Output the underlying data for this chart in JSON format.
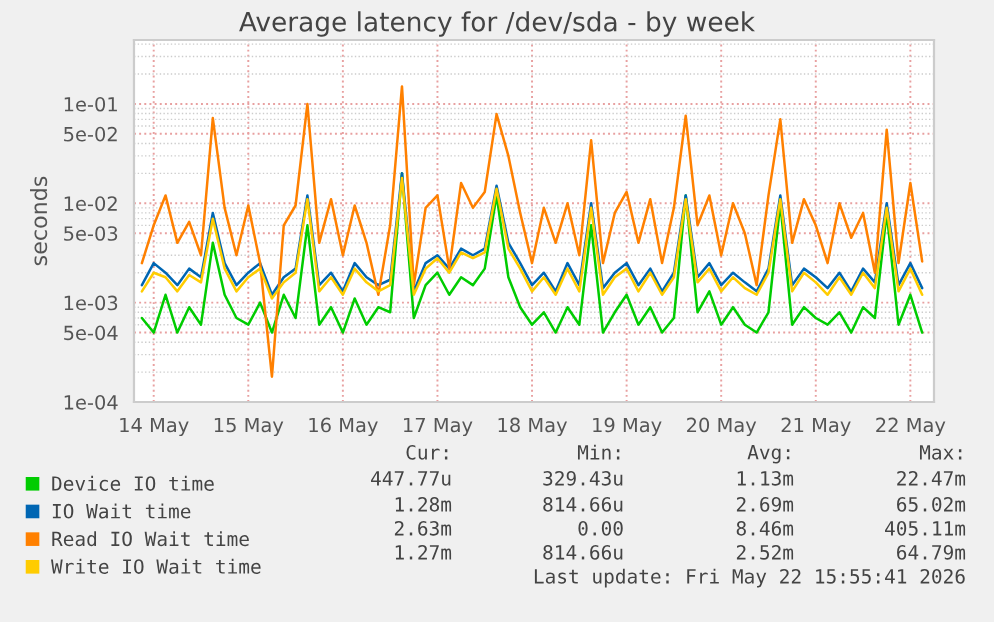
{
  "chart_data": {
    "type": "line",
    "title": "Average latency for /dev/sda - by week",
    "ylabel": "seconds",
    "log": "y",
    "grid": true,
    "legend": "bottom left",
    "line_style": "solid",
    "marker": "none",
    "x": [
      "2026-05-13T21:00",
      "2026-05-14T00:00",
      "2026-05-14T03:00",
      "2026-05-14T06:00",
      "2026-05-14T09:00",
      "2026-05-14T12:00",
      "2026-05-14T15:00",
      "2026-05-14T18:00",
      "2026-05-14T21:00",
      "2026-05-15T00:00",
      "2026-05-15T03:00",
      "2026-05-15T06:00",
      "2026-05-15T09:00",
      "2026-05-15T12:00",
      "2026-05-15T15:00",
      "2026-05-15T18:00",
      "2026-05-15T21:00",
      "2026-05-16T00:00",
      "2026-05-16T03:00",
      "2026-05-16T06:00",
      "2026-05-16T09:00",
      "2026-05-16T12:00",
      "2026-05-16T15:00",
      "2026-05-16T18:00",
      "2026-05-16T21:00",
      "2026-05-17T00:00",
      "2026-05-17T03:00",
      "2026-05-17T06:00",
      "2026-05-17T09:00",
      "2026-05-17T12:00",
      "2026-05-17T15:00",
      "2026-05-17T18:00",
      "2026-05-17T21:00",
      "2026-05-18T00:00",
      "2026-05-18T03:00",
      "2026-05-18T06:00",
      "2026-05-18T09:00",
      "2026-05-18T12:00",
      "2026-05-18T15:00",
      "2026-05-18T18:00",
      "2026-05-18T21:00",
      "2026-05-19T00:00",
      "2026-05-19T03:00",
      "2026-05-19T06:00",
      "2026-05-19T09:00",
      "2026-05-19T12:00",
      "2026-05-19T15:00",
      "2026-05-19T18:00",
      "2026-05-19T21:00",
      "2026-05-20T00:00",
      "2026-05-20T03:00",
      "2026-05-20T06:00",
      "2026-05-20T09:00",
      "2026-05-20T12:00",
      "2026-05-20T15:00",
      "2026-05-20T18:00",
      "2026-05-20T21:00",
      "2026-05-21T00:00",
      "2026-05-21T03:00",
      "2026-05-21T06:00",
      "2026-05-21T09:00",
      "2026-05-21T12:00",
      "2026-05-21T15:00",
      "2026-05-21T18:00",
      "2026-05-21T21:00",
      "2026-05-22T00:00",
      "2026-05-22T03:00"
    ],
    "xlim": [
      "2026-05-13T19:00",
      "2026-05-22T06:00"
    ],
    "xticks": [
      {
        "value": "2026-05-14",
        "label": "14 May"
      },
      {
        "value": "2026-05-15",
        "label": "15 May"
      },
      {
        "value": "2026-05-16",
        "label": "16 May"
      },
      {
        "value": "2026-05-17",
        "label": "17 May"
      },
      {
        "value": "2026-05-18",
        "label": "18 May"
      },
      {
        "value": "2026-05-19",
        "label": "19 May"
      },
      {
        "value": "2026-05-20",
        "label": "20 May"
      },
      {
        "value": "2026-05-21",
        "label": "21 May"
      },
      {
        "value": "2026-05-22",
        "label": "22 May"
      }
    ],
    "ylim": [
      0.0001,
      0.44
    ],
    "yticks": [
      {
        "value": 0.0001,
        "label": "1e-04"
      },
      {
        "value": 0.0005,
        "label": "5e-04"
      },
      {
        "value": 0.001,
        "label": "1e-03"
      },
      {
        "value": 0.005,
        "label": "5e-03"
      },
      {
        "value": 0.01,
        "label": "1e-02"
      },
      {
        "value": 0.05,
        "label": "5e-02"
      },
      {
        "value": 0.1,
        "label": "1e-01"
      }
    ],
    "series": [
      {
        "name": "Device IO time",
        "color": "#00cc00",
        "values": [
          0.0007,
          0.0005,
          0.0012,
          0.0005,
          0.0009,
          0.0006,
          0.004,
          0.0012,
          0.0007,
          0.0006,
          0.001,
          0.0005,
          0.0012,
          0.0007,
          0.006,
          0.0006,
          0.0009,
          0.0005,
          0.0011,
          0.0006,
          0.0009,
          0.0008,
          0.02,
          0.0007,
          0.0015,
          0.002,
          0.0012,
          0.0018,
          0.0015,
          0.0022,
          0.012,
          0.0018,
          0.0009,
          0.0006,
          0.0008,
          0.0005,
          0.0009,
          0.0006,
          0.006,
          0.0005,
          0.0008,
          0.0012,
          0.0006,
          0.0009,
          0.0005,
          0.0007,
          0.012,
          0.0008,
          0.0013,
          0.0006,
          0.0009,
          0.0006,
          0.0005,
          0.0008,
          0.01,
          0.0006,
          0.0009,
          0.0007,
          0.0006,
          0.0008,
          0.0005,
          0.0009,
          0.0007,
          0.008,
          0.0006,
          0.0012,
          0.0005
        ]
      },
      {
        "name": "IO Wait time",
        "color": "#0066b3",
        "values": [
          0.0015,
          0.0025,
          0.002,
          0.0015,
          0.0022,
          0.0018,
          0.008,
          0.0025,
          0.0015,
          0.002,
          0.0025,
          0.0012,
          0.0018,
          0.0022,
          0.012,
          0.0015,
          0.002,
          0.0013,
          0.0025,
          0.0018,
          0.0015,
          0.0017,
          0.02,
          0.0013,
          0.0025,
          0.003,
          0.0022,
          0.0035,
          0.003,
          0.0035,
          0.015,
          0.004,
          0.0025,
          0.0015,
          0.002,
          0.0013,
          0.0025,
          0.0015,
          0.01,
          0.0014,
          0.002,
          0.0025,
          0.0015,
          0.0022,
          0.0013,
          0.002,
          0.012,
          0.0018,
          0.0025,
          0.0015,
          0.002,
          0.0016,
          0.0013,
          0.0022,
          0.012,
          0.0015,
          0.0022,
          0.0018,
          0.0014,
          0.002,
          0.0013,
          0.0022,
          0.0016,
          0.01,
          0.0015,
          0.0025,
          0.0014
        ]
      },
      {
        "name": "Read IO Wait time",
        "color": "#ff8000",
        "values": [
          0.0025,
          0.006,
          0.012,
          0.004,
          0.0065,
          0.003,
          0.072,
          0.009,
          0.003,
          0.0095,
          0.0025,
          0.00018,
          0.006,
          0.0095,
          0.1,
          0.004,
          0.011,
          0.003,
          0.0095,
          0.004,
          0.0012,
          0.006,
          0.15,
          0.0015,
          0.009,
          0.012,
          0.0022,
          0.016,
          0.009,
          0.013,
          0.079,
          0.03,
          0.008,
          0.0025,
          0.009,
          0.004,
          0.01,
          0.003,
          0.043,
          0.0025,
          0.008,
          0.013,
          0.004,
          0.011,
          0.0025,
          0.009,
          0.076,
          0.006,
          0.012,
          0.003,
          0.01,
          0.005,
          0.0015,
          0.012,
          0.07,
          0.004,
          0.011,
          0.006,
          0.0025,
          0.01,
          0.0045,
          0.008,
          0.002,
          0.055,
          0.0025,
          0.016,
          0.0026
        ]
      },
      {
        "name": "Write IO Wait time",
        "color": "#ffcc00",
        "values": [
          0.0013,
          0.002,
          0.0018,
          0.0013,
          0.0019,
          0.0016,
          0.007,
          0.0022,
          0.0013,
          0.0018,
          0.0022,
          0.0011,
          0.0016,
          0.002,
          0.011,
          0.0013,
          0.0018,
          0.0012,
          0.0022,
          0.0016,
          0.0013,
          0.0015,
          0.018,
          0.0012,
          0.0022,
          0.0028,
          0.002,
          0.0032,
          0.0028,
          0.0032,
          0.014,
          0.0035,
          0.0022,
          0.0013,
          0.0018,
          0.0012,
          0.0022,
          0.0013,
          0.009,
          0.0012,
          0.0018,
          0.0022,
          0.0013,
          0.002,
          0.0012,
          0.0018,
          0.011,
          0.0016,
          0.0022,
          0.0013,
          0.0018,
          0.0014,
          0.0012,
          0.002,
          0.011,
          0.0013,
          0.002,
          0.0016,
          0.0012,
          0.0018,
          0.0012,
          0.002,
          0.0014,
          0.009,
          0.0013,
          0.0022,
          0.0012
        ]
      }
    ],
    "annotations": [
      "Cur:",
      "Min:",
      "Avg:",
      "Max:",
      "447.77u",
      "329.43u",
      "1.13m",
      "22.47m",
      "1.28m",
      "814.66u",
      "2.69m",
      "65.02m",
      "2.63m",
      "0.00",
      "8.46m",
      "405.11m",
      "1.27m",
      "814.66u",
      "2.52m",
      "64.79m",
      "Last update: Fri May 22 15:55:41 2026"
    ]
  }
}
